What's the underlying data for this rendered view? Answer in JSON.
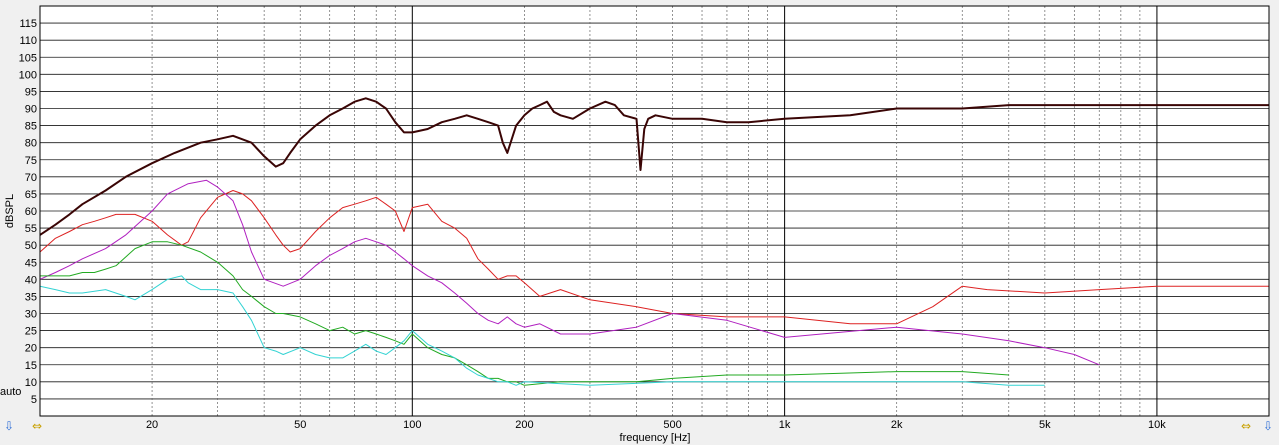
{
  "chart_data": {
    "type": "line",
    "title": "",
    "xlabel": "frequency [Hz]",
    "ylabel": "dBSPL",
    "xscale": "log",
    "xlim": [
      10,
      20000
    ],
    "ylim": [
      0,
      120
    ],
    "grid": true,
    "x_tick_labels": [
      {
        "x": 20,
        "label": "20"
      },
      {
        "x": 50,
        "label": "50"
      },
      {
        "x": 100,
        "label": "100"
      },
      {
        "x": 200,
        "label": "200"
      },
      {
        "x": 500,
        "label": "500"
      },
      {
        "x": 1000,
        "label": "1k"
      },
      {
        "x": 2000,
        "label": "2k"
      },
      {
        "x": 5000,
        "label": "5k"
      },
      {
        "x": 10000,
        "label": "10k"
      }
    ],
    "y_tick_labels": [
      5,
      10,
      15,
      20,
      25,
      30,
      35,
      40,
      45,
      50,
      55,
      60,
      65,
      70,
      75,
      80,
      85,
      90,
      95,
      100,
      105,
      110,
      115
    ],
    "series": [
      {
        "color": "#3a0505",
        "noise": 0,
        "x": [
          10,
          11,
          12,
          13,
          15,
          17,
          20,
          23,
          27,
          30,
          33,
          37,
          40,
          43,
          45,
          47,
          50,
          55,
          60,
          65,
          70,
          75,
          80,
          85,
          90,
          95,
          100,
          110,
          120,
          130,
          140,
          150,
          160,
          170,
          175,
          180,
          190,
          200,
          210,
          220,
          230,
          240,
          250,
          270,
          300,
          330,
          350,
          370,
          400,
          410,
          420,
          430,
          450,
          500,
          600,
          700,
          800,
          1000,
          1500,
          2000,
          2500,
          3000,
          4000,
          5000,
          7000,
          10000,
          20000
        ],
        "y": [
          53,
          56,
          59,
          62,
          66,
          70,
          74,
          77,
          80,
          81,
          82,
          80,
          76,
          73,
          74,
          77,
          81,
          85,
          88,
          90,
          92,
          93,
          92,
          90,
          86,
          83,
          83,
          84,
          86,
          87,
          88,
          87,
          86,
          85,
          80,
          77,
          85,
          88,
          90,
          91,
          92,
          89,
          88,
          87,
          90,
          92,
          91,
          88,
          87,
          72,
          84,
          87,
          88,
          87,
          87,
          86,
          86,
          87,
          88,
          90,
          90,
          90,
          91,
          91,
          91,
          91,
          91
        ]
      },
      {
        "color": "#dd2222",
        "noise": 0,
        "x": [
          10,
          11,
          12,
          13,
          14,
          15,
          16,
          18,
          20,
          22,
          24,
          25,
          27,
          30,
          33,
          35,
          37,
          40,
          43,
          45,
          47,
          50,
          55,
          60,
          65,
          70,
          75,
          80,
          85,
          90,
          95,
          100,
          110,
          120,
          130,
          140,
          150,
          160,
          170,
          180,
          190,
          200,
          220,
          250,
          300,
          400,
          500,
          700,
          1000,
          1500,
          2000,
          2500,
          3000,
          3500,
          5000,
          7000,
          10000,
          20000
        ],
        "y": [
          48,
          52,
          54,
          56,
          57,
          58,
          59,
          59,
          57,
          53,
          50,
          51,
          58,
          64,
          66,
          65,
          63,
          58,
          53,
          50,
          48,
          49,
          54,
          58,
          61,
          62,
          63,
          64,
          62,
          60,
          54,
          61,
          62,
          57,
          55,
          52,
          46,
          43,
          40,
          41,
          41,
          39,
          35,
          37,
          34,
          32,
          30,
          29,
          29,
          27,
          27,
          32,
          38,
          37,
          36,
          37,
          38,
          38
        ]
      },
      {
        "color": "#b020c0",
        "noise": 0,
        "x": [
          10,
          11,
          12,
          13,
          15,
          17,
          20,
          22,
          25,
          28,
          30,
          33,
          35,
          37,
          40,
          45,
          50,
          55,
          60,
          65,
          70,
          75,
          80,
          85,
          90,
          95,
          100,
          110,
          120,
          130,
          140,
          150,
          160,
          170,
          180,
          190,
          200,
          220,
          250,
          300,
          400,
          500,
          700,
          1000,
          2000,
          3000,
          4000,
          5000,
          6000,
          7000
        ],
        "y": [
          40,
          42,
          44,
          46,
          49,
          53,
          60,
          65,
          68,
          69,
          67,
          63,
          56,
          48,
          40,
          38,
          40,
          44,
          47,
          49,
          51,
          52,
          51,
          50,
          48,
          46,
          44,
          41,
          39,
          36,
          33,
          30,
          28,
          27,
          29,
          27,
          26,
          27,
          24,
          24,
          26,
          30,
          28,
          23,
          26,
          24,
          22,
          20,
          18,
          15
        ]
      },
      {
        "color": "#22aa22",
        "noise": 0,
        "x": [
          10,
          11,
          12,
          13,
          14,
          15,
          16,
          18,
          20,
          22,
          24,
          27,
          30,
          33,
          35,
          37,
          40,
          43,
          45,
          50,
          55,
          60,
          65,
          70,
          75,
          80,
          85,
          90,
          95,
          100,
          110,
          120,
          130,
          140,
          150,
          160,
          170,
          180,
          190,
          200,
          250,
          300,
          400,
          500,
          700,
          1000,
          2000,
          3000,
          4000
        ],
        "y": [
          41,
          41,
          41,
          42,
          42,
          43,
          44,
          49,
          51,
          51,
          50,
          48,
          45,
          41,
          37,
          35,
          32,
          30,
          30,
          29,
          27,
          25,
          26,
          24,
          25,
          24,
          23,
          22,
          21,
          24,
          20,
          18,
          17,
          15,
          13,
          11,
          11,
          10,
          10,
          9,
          10,
          10,
          10,
          11,
          12,
          12,
          13,
          13,
          12
        ]
      },
      {
        "color": "#33d3d3",
        "noise": 0,
        "x": [
          10,
          11,
          12,
          13,
          15,
          17,
          18,
          20,
          22,
          24,
          25,
          27,
          30,
          33,
          35,
          37,
          40,
          43,
          45,
          50,
          55,
          60,
          65,
          70,
          75,
          80,
          85,
          90,
          95,
          100,
          110,
          120,
          130,
          140,
          150,
          160,
          170,
          180,
          190,
          200,
          300,
          500,
          1000,
          2000,
          3000,
          4000,
          5000
        ],
        "y": [
          38,
          37,
          36,
          36,
          37,
          35,
          34,
          37,
          40,
          41,
          39,
          37,
          37,
          36,
          32,
          28,
          20,
          19,
          18,
          20,
          18,
          17,
          17,
          19,
          21,
          19,
          18,
          20,
          22,
          25,
          21,
          19,
          17,
          14,
          12,
          11,
          10,
          10,
          9,
          10,
          9,
          10,
          10,
          10,
          10,
          9,
          9
        ]
      }
    ]
  },
  "axis_controls": {
    "auto_label": "auto",
    "left_nav_icon": "arrow-left-right-icon",
    "right_nav_icon": "arrow-left-right-icon",
    "down_icon": "arrow-down-icon"
  }
}
